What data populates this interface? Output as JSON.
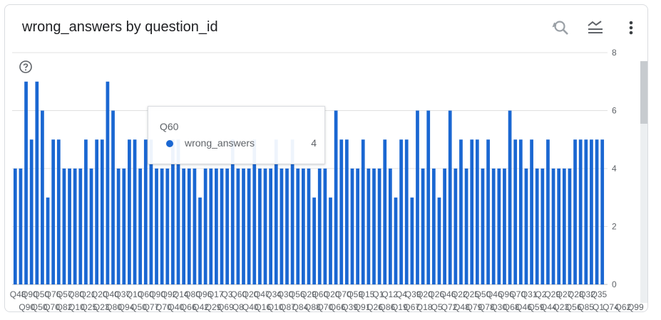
{
  "card": {
    "title": "wrong_answers by question_id"
  },
  "toolbar": {
    "reset_zoom_icon": "zoom-reset-icon",
    "legend_icon": "legend-icon",
    "more_icon": "more-vert-icon"
  },
  "help_icon": "help-circle-icon",
  "colors": {
    "bar": "#1a67d2",
    "grid": "#e0e0e0",
    "text": "#5f6368",
    "title": "#202124"
  },
  "tooltip": {
    "category": "Q60",
    "series_name": "wrong_answers",
    "value": "4"
  },
  "chart_data": {
    "type": "bar",
    "title": "wrong_answers by question_id",
    "xlabel": "",
    "ylabel": "",
    "ylim": [
      0,
      8
    ],
    "yticks": [
      0,
      2,
      4,
      6,
      8
    ],
    "grid": true,
    "legend": "none",
    "categories": [
      "Q48",
      "Q90",
      "Q90",
      "Q50",
      "Q50",
      "Q70",
      "Q76",
      "Q80",
      "Q57",
      "Q21",
      "Q80",
      "Q10",
      "Q26",
      "Q20",
      "Q25",
      "Q40",
      "Q40",
      "Q80",
      "Q37",
      "Q90",
      "Q10",
      "Q10",
      "Q50",
      "Q60",
      "Q70",
      "Q90",
      "Q70",
      "Q92",
      "Q40",
      "Q10",
      "Q60",
      "Q10",
      "Q80",
      "Q40",
      "Q96",
      "Q42",
      "Q29",
      "Q17",
      "Q60",
      "Q3",
      "Q90",
      "Q8",
      "Q60",
      "Q40",
      "Q20",
      "Q10",
      "Q47",
      "Q16",
      "Q34",
      "Q10",
      "Q30",
      "Q87",
      "Q56",
      "Q84",
      "Q29",
      "Q88",
      "Q60",
      "Q70",
      "Q20",
      "Q66",
      "Q70",
      "Q30",
      "Q59",
      "Q91",
      "Q15",
      "Q26",
      "Q21",
      "Q86",
      "Q12",
      "Q19",
      "Q24",
      "Q66",
      "Q39",
      "Q71",
      "Q20",
      "Q18",
      "Q26",
      "Q50",
      "Q46",
      "Q72",
      "Q22",
      "Q48",
      "Q25",
      "Q79",
      "Q50",
      "Q78",
      "Q46",
      "Q30",
      "Q96",
      "Q60",
      "Q70",
      "Q46",
      "Q31",
      "Q59",
      "Q22",
      "Q40",
      "Q29",
      "Q23",
      "Q27",
      "Q50",
      "Q28",
      "Q56",
      "Q32",
      "Q85",
      "Q35",
      "Q1",
      "Q62",
      "Q74",
      "Q99"
    ],
    "x_labels_row1": [
      "Q48",
      "Q90",
      "Q50",
      "Q76",
      "Q57",
      "Q80",
      "Q21",
      "Q20",
      "Q40",
      "Q37",
      "Q10",
      "Q60",
      "Q90",
      "Q92",
      "Q14",
      "Q80",
      "Q96",
      "Q17",
      "Q3",
      "Q60",
      "Q20",
      "Q47",
      "Q34",
      "Q30",
      "Q56",
      "Q29",
      "Q60",
      "Q20",
      "Q70",
      "Q59",
      "Q15",
      "Q1",
      "Q12",
      "Q4",
      "Q39",
      "Q20",
      "Q26",
      "Q46",
      "Q22",
      "Q25",
      "Q50",
      "Q46",
      "Q96",
      "Q70",
      "Q31",
      "Q2",
      "Q29",
      "Q27",
      "Q28",
      "Q32",
      "Q35"
    ],
    "x_labels_row2": [
      "Q90",
      "Q50",
      "Q70",
      "Q82",
      "Q10",
      "Q25",
      "Q23",
      "Q80",
      "Q94",
      "Q50",
      "Q77",
      "Q70",
      "Q40",
      "Q66",
      "Q42",
      "Q29",
      "Q69",
      "Q8",
      "Q40",
      "Q16",
      "Q10",
      "Q87",
      "Q84",
      "Q88",
      "Q70",
      "Q66",
      "Q39",
      "Q91",
      "Q26",
      "Q86",
      "Q19",
      "Q67",
      "Q18",
      "Q5",
      "Q72",
      "Q48",
      "Q79",
      "Q78",
      "Q30",
      "Q68",
      "Q46",
      "Q59",
      "Q44",
      "Q23",
      "Q56",
      "Q85",
      "Q1",
      "Q74",
      "Q62",
      "Q99"
    ],
    "values": [
      4,
      4,
      7,
      5,
      7,
      6,
      3,
      5,
      5,
      4,
      4,
      4,
      4,
      5,
      4,
      5,
      5,
      7,
      6,
      4,
      4,
      5,
      5,
      4,
      5,
      5,
      4,
      4,
      4,
      5,
      5,
      4,
      4,
      4,
      3,
      4,
      4,
      4,
      4,
      4,
      5,
      4,
      4,
      4,
      5,
      4,
      4,
      4,
      5,
      4,
      4,
      5,
      4,
      4,
      4,
      3,
      4,
      4,
      3,
      6,
      5,
      5,
      4,
      4,
      5,
      4,
      4,
      4,
      5,
      4,
      3,
      5,
      5,
      3,
      6,
      4,
      6,
      4,
      3,
      4,
      6,
      4,
      5,
      4,
      5,
      5,
      4,
      5,
      4,
      4,
      4,
      6,
      5,
      5,
      4,
      5,
      4,
      4,
      5,
      4,
      4,
      4,
      4,
      5,
      5,
      5,
      5,
      5,
      5
    ]
  }
}
